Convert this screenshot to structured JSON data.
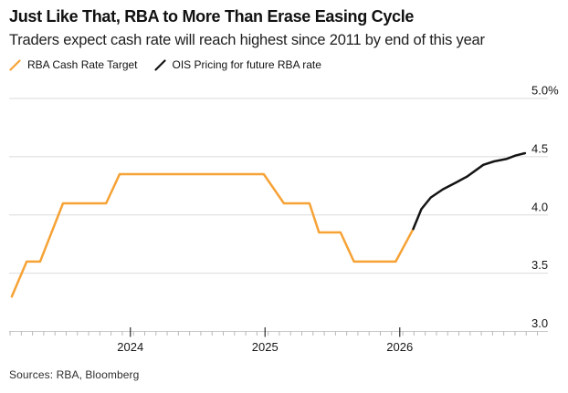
{
  "header": {
    "title": "Just Like That, RBA to More Than Erase Easing Cycle",
    "subtitle": "Traders expect cash rate will reach highest since 2011 by end of this year"
  },
  "legend": [
    {
      "icon": "slash-icon",
      "label": "RBA Cash Rate Target",
      "color": "#F6A235"
    },
    {
      "icon": "slash-icon",
      "label": "OIS Pricing for future RBA rate",
      "color": "#141414"
    }
  ],
  "source": "Sources: RBA, Bloomberg",
  "colors": {
    "background": "#FFFFFF",
    "gridline": "#DBDBDB",
    "axis_line": "#C8C8C8",
    "minor_tick": "#B8B8B8",
    "major_tick": "#3C3C3C",
    "axis_label": "#161616",
    "rba_line": "#F6A235",
    "ois_line": "#141414"
  },
  "chart_data": {
    "type": "line",
    "title": "Just Like That, RBA to More Than Erase Easing Cycle",
    "subtitle": "Traders expect cash rate will reach highest since 2011 by end of this year",
    "ylabel": "%",
    "grid": true,
    "legend_position": "top-left",
    "y_axis": {
      "range": [
        3.0,
        5.0
      ],
      "ticks": [
        3.0,
        3.5,
        4.0,
        4.5,
        5.0
      ],
      "tick_labels": [
        "3.0",
        "3.5",
        "4.0",
        "4.5",
        "5.0%"
      ],
      "side": "right"
    },
    "x_axis": {
      "range_decimal_years": [
        2023.1,
        2027.1
      ],
      "major_ticks": [
        2024,
        2025,
        2026
      ],
      "tick_labels": [
        "2024",
        "2025",
        "2026"
      ],
      "minor_tick_interval_years": 0.0833
    },
    "series": [
      {
        "name": "RBA Cash Rate Target",
        "color": "#F6A235",
        "points": [
          [
            2023.12,
            3.3
          ],
          [
            2023.23,
            3.6
          ],
          [
            2023.33,
            3.6
          ],
          [
            2023.5,
            4.1
          ],
          [
            2023.82,
            4.1
          ],
          [
            2023.92,
            4.35
          ],
          [
            2024.99,
            4.35
          ],
          [
            2025.14,
            4.1
          ],
          [
            2025.33,
            4.1
          ],
          [
            2025.4,
            3.85
          ],
          [
            2025.56,
            3.85
          ],
          [
            2025.66,
            3.6
          ],
          [
            2025.97,
            3.6
          ],
          [
            2026.1,
            3.88
          ]
        ]
      },
      {
        "name": "OIS Pricing for future RBA rate",
        "color": "#141414",
        "points": [
          [
            2026.1,
            3.88
          ],
          [
            2026.16,
            4.05
          ],
          [
            2026.23,
            4.15
          ],
          [
            2026.32,
            4.22
          ],
          [
            2026.42,
            4.28
          ],
          [
            2026.5,
            4.33
          ],
          [
            2026.62,
            4.43
          ],
          [
            2026.7,
            4.46
          ],
          [
            2026.79,
            4.48
          ],
          [
            2026.86,
            4.51
          ],
          [
            2026.93,
            4.53
          ]
        ]
      }
    ]
  }
}
